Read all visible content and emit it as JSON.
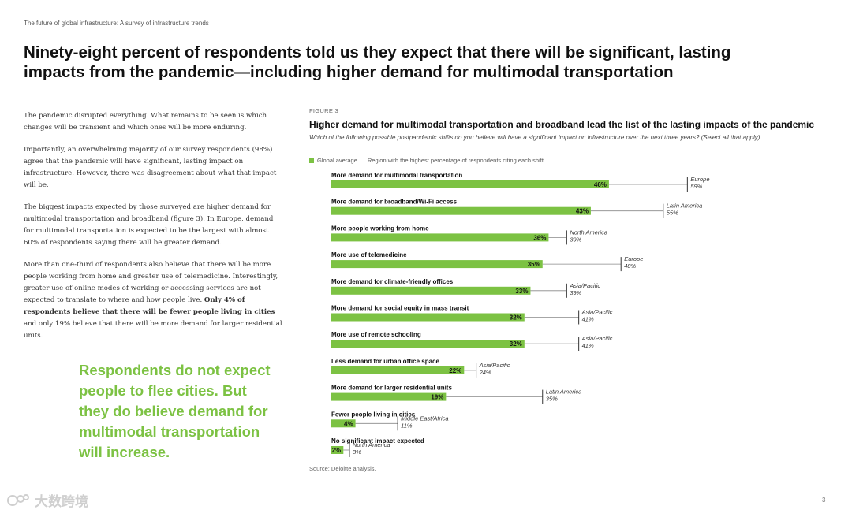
{
  "header": {
    "text": "The future of global infrastructure: A survey of infrastructure trends"
  },
  "title": "Ninety-eight percent of respondents told us they expect that there will be significant, lasting impacts from the pandemic—including higher demand for multimodal transportation",
  "body": {
    "p1": "The pandemic disrupted everything. What remains to be seen is which changes will be transient and which ones will be more enduring.",
    "p2": "Importantly, an overwhelming majority of our survey respondents (98%) agree that the pandemic will have significant, lasting impact on infrastructure. However, there was disagreement about what that impact will be.",
    "p3": "The biggest impacts expected by those surveyed are higher demand for multimodal transportation and broadband (figure 3). In Europe, demand for multimodal transportation is expected to be the largest with almost 60% of respondents saying there will be greater demand.",
    "p4_start": "More than one-third of respondents also believe that there will be more people working from home and greater use of telemedicine. Interestingly, greater use of online modes of working or accessing services are not expected to translate to where and how people live. ",
    "p4_bold": "Only 4% of respondents believe that there will be fewer people living in cities",
    "p4_end": " and only 19% believe that there will be more demand for larger residential units."
  },
  "pull_quote": "Respondents do not expect people to flee cities. But they do believe demand for multimodal transportation will increase.",
  "figure": {
    "label": "FIGURE 3",
    "title": "Higher demand for multimodal transportation and broadband lead the list of the lasting impacts of the pandemic",
    "question": "Which of the following possible postpandemic shifts do you believe will have a significant impact on infrastructure over the next three years? (Select all that apply).",
    "legend_global": "Global average",
    "legend_region": "Region with the highest percentage of respondents citing each shift",
    "source": "Source: Deloitte analysis."
  },
  "colors": {
    "bar": "#7cc243",
    "accent_text": "#7cc243"
  },
  "chart_data": {
    "type": "bar",
    "orientation": "horizontal",
    "categories": [
      "More demand for multimodal transportation",
      "More demand for broadband/Wi-Fi access",
      "More people working from home",
      "More use of telemedicine",
      "More demand for climate-friendly offices",
      "More demand for social equity in mass transit",
      "More use of remote schooling",
      "Less demand for urban office space",
      "More demand for larger residential units",
      "Fewer people living in cities",
      "No significant impact expected"
    ],
    "series": [
      {
        "name": "Global average",
        "values": [
          46,
          43,
          36,
          35,
          33,
          32,
          32,
          22,
          19,
          4,
          2
        ]
      },
      {
        "name": "Region with the highest percentage of respondents citing each shift",
        "values": [
          59,
          55,
          39,
          48,
          39,
          41,
          41,
          24,
          35,
          11,
          3
        ]
      }
    ],
    "value_labels": [
      "46%",
      "43%",
      "36%",
      "35%",
      "33%",
      "32%",
      "32%",
      "22%",
      "19%",
      "4%",
      "2%"
    ],
    "regions": [
      "Europe",
      "Latin America",
      "North America",
      "Europe",
      "Asia/Pacific",
      "Asia/Pacific",
      "Asia/Pacific",
      "Asia/Pacific",
      "Latin America",
      "Middle East/Africa",
      "North America"
    ],
    "region_labels": [
      "59%",
      "55%",
      "39%",
      "48%",
      "39%",
      "41%",
      "41%",
      "24%",
      "35%",
      "11%",
      "3%"
    ],
    "unit": "%",
    "xlim": [
      0,
      70
    ]
  },
  "watermark": "大数跨境",
  "page_number": "3"
}
